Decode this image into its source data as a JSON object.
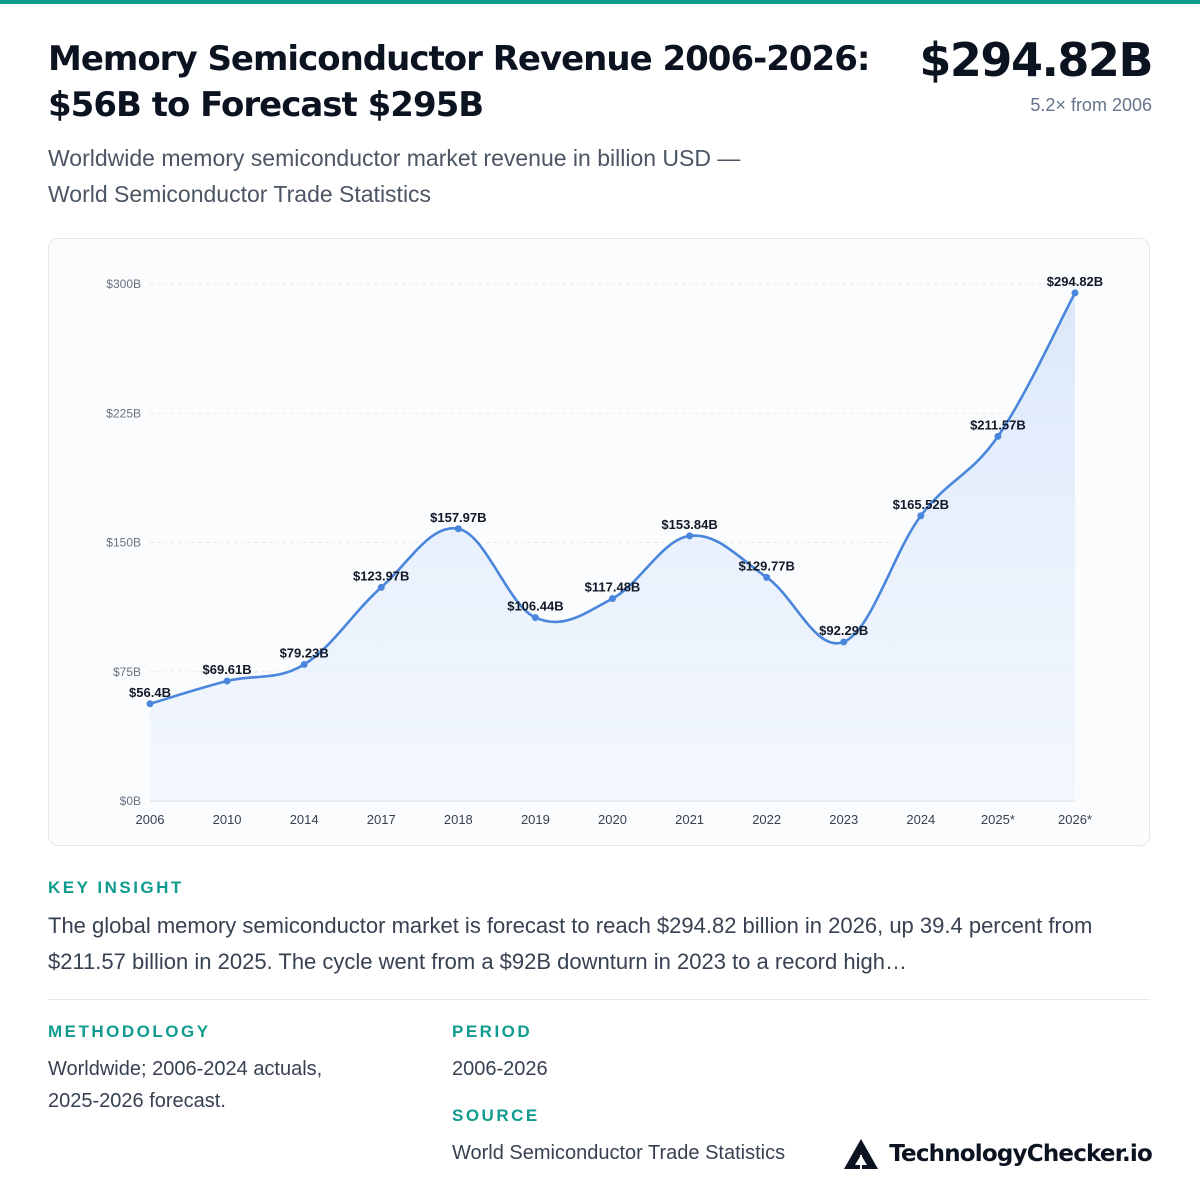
{
  "title_line1": "Memory Semiconductor Revenue 2006-2026:",
  "title_line2": "$56B to Forecast $295B",
  "headline_value": "$294.82B",
  "headline_sub": "5.2× from 2006",
  "subtitle_line1": "Worldwide memory semiconductor market revenue in billion USD —",
  "subtitle_line2": "World Semiconductor Trade Statistics",
  "chart_data": {
    "type": "area",
    "categories": [
      "2006",
      "2010",
      "2014",
      "2017",
      "2018",
      "2019",
      "2020",
      "2021",
      "2022",
      "2023",
      "2024",
      "2025*",
      "2026*"
    ],
    "values": [
      56.4,
      69.61,
      79.23,
      123.97,
      157.97,
      106.44,
      117.48,
      153.84,
      129.77,
      92.29,
      165.52,
      211.57,
      294.82
    ],
    "value_labels": [
      "$56.4B",
      "$69.61B",
      "$79.23B",
      "$123.97B",
      "$157.97B",
      "$106.44B",
      "$117.48B",
      "$153.84B",
      "$129.77B",
      "$92.29B",
      "$165.52B",
      "$211.57B",
      "$294.82B"
    ],
    "y_ticks": [
      0,
      75,
      150,
      225,
      300
    ],
    "y_tick_labels": [
      "$0B",
      "$75B",
      "$150B",
      "$225B",
      "$300B"
    ],
    "ylim": [
      0,
      300
    ],
    "grid": true,
    "line_color": "#4a86db",
    "fill_color": "#dbe8fb"
  },
  "insight": {
    "label": "KEY INSIGHT",
    "text": "The global memory semiconductor market is forecast to reach $294.82 billion in 2026, up 39.4 percent from $211.57 billion in 2025. The cycle went from a $92B downturn in 2023 to a record high…"
  },
  "methodology": {
    "label": "METHODOLOGY",
    "line1": "Worldwide; 2006-2024 actuals,",
    "line2": "2025-2026 forecast."
  },
  "period": {
    "label": "PERIOD",
    "text": "2006-2026"
  },
  "source": {
    "label": "SOURCE",
    "text": "World Semiconductor Trade Statistics"
  },
  "brand": {
    "name": "TechnologyChecker.io",
    "icon": "triangle-logo-icon"
  },
  "colors": {
    "accent": "#0f9b8e",
    "text": "#0b1220"
  }
}
